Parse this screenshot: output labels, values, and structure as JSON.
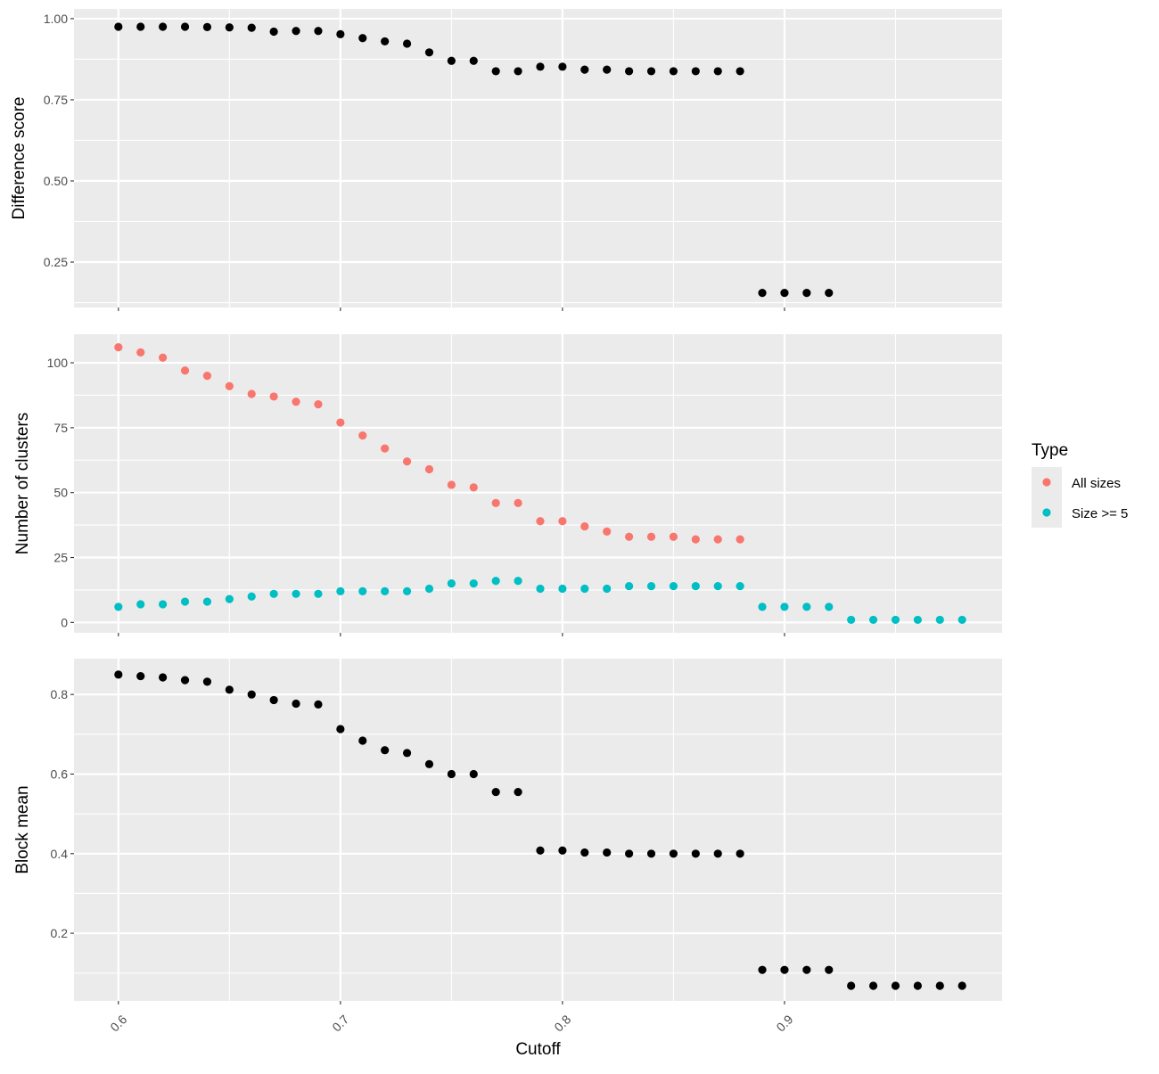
{
  "chart_data": {
    "type": "scatter",
    "xlabel": "Cutoff",
    "x_ticks": [
      "0.6",
      "0.7",
      "0.8",
      "0.9"
    ],
    "x_tick_values": [
      0.6,
      0.7,
      0.8,
      0.9
    ],
    "xlim": [
      0.58,
      0.998
    ],
    "legend": {
      "title": "Type",
      "position": "right",
      "entries": [
        {
          "label": "All sizes",
          "color": "#F8766D"
        },
        {
          "label": "Size >= 5",
          "color": "#00BFC4"
        }
      ]
    },
    "background": "#EBEBEB",
    "grid": true,
    "panels": [
      {
        "ylabel": "Difference score",
        "ylim": [
          0.11,
          1.03
        ],
        "y_ticks": [
          "0.25",
          "0.50",
          "0.75",
          "1.00"
        ],
        "y_tick_values": [
          0.25,
          0.5,
          0.75,
          1.0
        ],
        "series": [
          {
            "color": "#000000",
            "x": [
              0.6,
              0.61,
              0.62,
              0.63,
              0.64,
              0.65,
              0.66,
              0.67,
              0.68,
              0.69,
              0.7,
              0.71,
              0.72,
              0.73,
              0.74,
              0.75,
              0.76,
              0.77,
              0.78,
              0.79,
              0.8,
              0.81,
              0.82,
              0.83,
              0.84,
              0.85,
              0.86,
              0.87,
              0.88,
              0.89,
              0.9,
              0.91,
              0.92
            ],
            "y": [
              0.975,
              0.975,
              0.975,
              0.975,
              0.974,
              0.973,
              0.972,
              0.96,
              0.962,
              0.962,
              0.952,
              0.94,
              0.93,
              0.923,
              0.896,
              0.87,
              0.87,
              0.838,
              0.838,
              0.852,
              0.852,
              0.843,
              0.843,
              0.838,
              0.838,
              0.838,
              0.838,
              0.838,
              0.838,
              0.155,
              0.155,
              0.155,
              0.155
            ]
          }
        ]
      },
      {
        "ylabel": "Number of clusters",
        "ylim": [
          -4,
          111
        ],
        "y_ticks": [
          "0",
          "25",
          "50",
          "75",
          "100"
        ],
        "y_tick_values": [
          0,
          25,
          50,
          75,
          100
        ],
        "series": [
          {
            "name": "All sizes",
            "color": "#F8766D",
            "x": [
              0.6,
              0.61,
              0.62,
              0.63,
              0.64,
              0.65,
              0.66,
              0.67,
              0.68,
              0.69,
              0.7,
              0.71,
              0.72,
              0.73,
              0.74,
              0.75,
              0.76,
              0.77,
              0.78,
              0.79,
              0.8,
              0.81,
              0.82,
              0.83,
              0.84,
              0.85,
              0.86,
              0.87,
              0.88
            ],
            "y": [
              106,
              104,
              102,
              97,
              95,
              91,
              88,
              87,
              85,
              84,
              77,
              72,
              67,
              62,
              59,
              53,
              52,
              46,
              46,
              39,
              39,
              37,
              35,
              33,
              33,
              33,
              32,
              32,
              32
            ]
          },
          {
            "name": "Size >= 5",
            "color": "#00BFC4",
            "x": [
              0.6,
              0.61,
              0.62,
              0.63,
              0.64,
              0.65,
              0.66,
              0.67,
              0.68,
              0.69,
              0.7,
              0.71,
              0.72,
              0.73,
              0.74,
              0.75,
              0.76,
              0.77,
              0.78,
              0.79,
              0.8,
              0.81,
              0.82,
              0.83,
              0.84,
              0.85,
              0.86,
              0.87,
              0.88,
              0.89,
              0.9,
              0.91,
              0.92,
              0.93,
              0.94,
              0.95,
              0.96,
              0.97,
              0.98
            ],
            "y": [
              6,
              7,
              7,
              8,
              8,
              9,
              10,
              11,
              11,
              11,
              12,
              12,
              12,
              12,
              13,
              15,
              15,
              16,
              16,
              13,
              13,
              13,
              13,
              14,
              14,
              14,
              14,
              14,
              14,
              6,
              6,
              6,
              6,
              1,
              1,
              1,
              1,
              1,
              1
            ]
          }
        ]
      },
      {
        "ylabel": "Block mean",
        "ylim": [
          0.03,
          0.89
        ],
        "y_ticks": [
          "0.2",
          "0.4",
          "0.6",
          "0.8"
        ],
        "y_tick_values": [
          0.2,
          0.4,
          0.6,
          0.8
        ],
        "series": [
          {
            "color": "#000000",
            "x": [
              0.6,
              0.61,
              0.62,
              0.63,
              0.64,
              0.65,
              0.66,
              0.67,
              0.68,
              0.69,
              0.7,
              0.71,
              0.72,
              0.73,
              0.74,
              0.75,
              0.76,
              0.77,
              0.78,
              0.79,
              0.8,
              0.81,
              0.82,
              0.83,
              0.84,
              0.85,
              0.86,
              0.87,
              0.88,
              0.89,
              0.9,
              0.91,
              0.92,
              0.93,
              0.94,
              0.95,
              0.96,
              0.97,
              0.98
            ],
            "y": [
              0.85,
              0.846,
              0.843,
              0.836,
              0.832,
              0.812,
              0.8,
              0.786,
              0.777,
              0.775,
              0.713,
              0.684,
              0.66,
              0.653,
              0.625,
              0.6,
              0.6,
              0.555,
              0.555,
              0.408,
              0.408,
              0.403,
              0.403,
              0.4,
              0.4,
              0.4,
              0.4,
              0.4,
              0.4,
              0.108,
              0.108,
              0.108,
              0.108,
              0.068,
              0.068,
              0.068,
              0.068,
              0.068,
              0.068
            ]
          }
        ]
      }
    ]
  }
}
